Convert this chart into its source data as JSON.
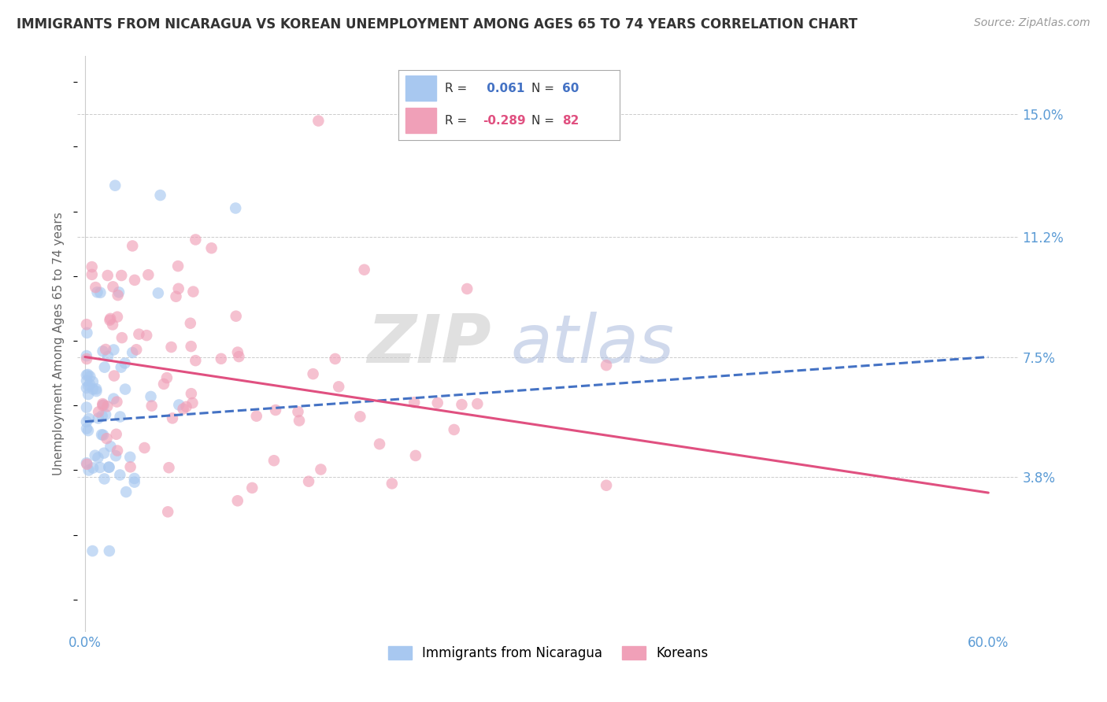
{
  "title": "IMMIGRANTS FROM NICARAGUA VS KOREAN UNEMPLOYMENT AMONG AGES 65 TO 74 YEARS CORRELATION CHART",
  "source": "Source: ZipAtlas.com",
  "ylabel": "Unemployment Among Ages 65 to 74 years",
  "xlim": [
    -0.005,
    0.62
  ],
  "ylim": [
    -0.01,
    0.168
  ],
  "ytick_values": [
    0.038,
    0.075,
    0.112,
    0.15
  ],
  "ytick_labels": [
    "3.8%",
    "7.5%",
    "11.2%",
    "15.0%"
  ],
  "r_nicaragua": 0.061,
  "n_nicaragua": 60,
  "r_korean": -0.289,
  "n_korean": 82,
  "color_nicaragua": "#A8C8F0",
  "color_korean": "#F0A0B8",
  "line_color_nicaragua": "#4472C4",
  "line_color_korean": "#E05080",
  "background_color": "#FFFFFF",
  "watermark_zip": "ZIP",
  "watermark_atlas": "atlas",
  "watermark_color_zip": "#CCCCCC",
  "watermark_color_atlas": "#AABBDD",
  "title_fontsize": 12,
  "source_fontsize": 10,
  "tick_color": "#5B9BD5"
}
